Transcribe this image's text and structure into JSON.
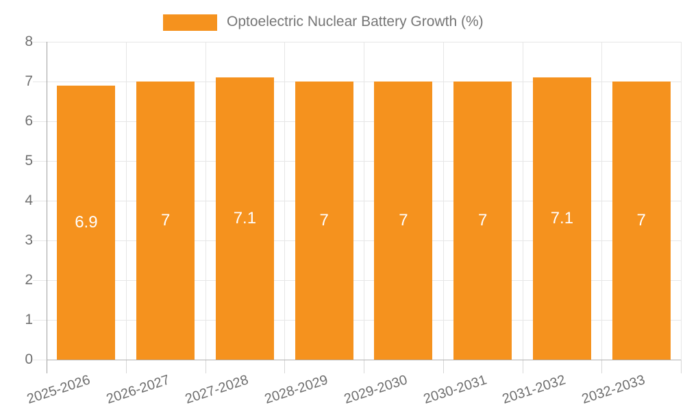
{
  "legend": {
    "label": "Optoelectric Nuclear Battery Growth (%)"
  },
  "colors": {
    "bar": "#F5921E",
    "bar_label": "#FFFFFF",
    "grid": "#E6E6E6",
    "axis": "#9E9E9E",
    "bottom_axis": "#B0B0B0",
    "category_tick": "#D6D6D6",
    "tick_label": "#6F6F6F",
    "legend_text": "#757575",
    "background": "#FFFFFF"
  },
  "chart_data": {
    "type": "bar",
    "title": "Optoelectric Nuclear Battery Growth (%)",
    "categories": [
      "2025-2026",
      "2026-2027",
      "2027-2028",
      "2028-2029",
      "2029-2030",
      "2030-2031",
      "2031-2032",
      "2032-2033"
    ],
    "values": [
      6.9,
      7,
      7.1,
      7,
      7,
      7,
      7.1,
      7
    ],
    "bar_labels": [
      "6.9",
      "7",
      "7.1",
      "7",
      "7",
      "7",
      "7.1",
      "7"
    ],
    "xlabel": "",
    "ylabel": "",
    "y_ticks": [
      0,
      1,
      2,
      3,
      4,
      5,
      6,
      7,
      8
    ],
    "ylim": [
      0,
      8
    ],
    "grid": true,
    "legend_position": "top"
  }
}
